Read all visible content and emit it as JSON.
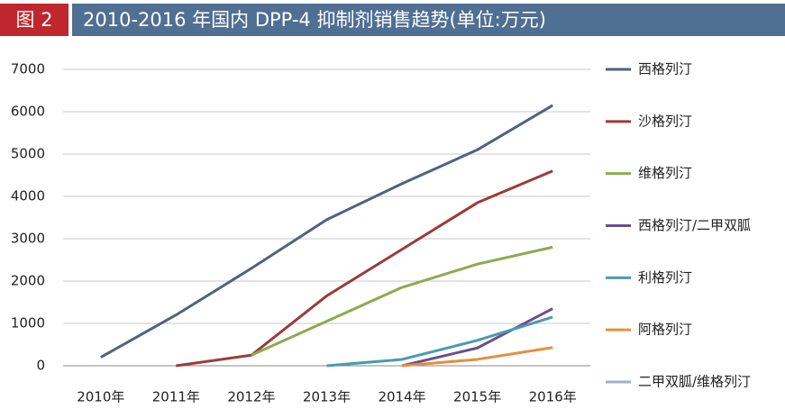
{
  "chart_data": {
    "type": "line",
    "figure_label": "图 2",
    "title": "2010-2016 年国内 DPP-4 抑制剂销售趋势(单位:万元)",
    "categories": [
      "2010年",
      "2011年",
      "2012年",
      "2013年",
      "2014年",
      "2015年",
      "2016年"
    ],
    "series": [
      {
        "name": "西格列汀",
        "color": "#4f6282",
        "values": [
          200,
          1200,
          2300,
          3450,
          4300,
          5100,
          6150
        ]
      },
      {
        "name": "沙格列汀",
        "color": "#9b3b3a",
        "values": [
          null,
          0,
          250,
          1650,
          2750,
          3850,
          4600
        ]
      },
      {
        "name": "维格列汀",
        "color": "#8aac4f",
        "values": [
          null,
          null,
          250,
          1050,
          1850,
          2400,
          2800
        ]
      },
      {
        "name": "西格列汀/二甲双胍",
        "color": "#6a4f8a",
        "values": [
          null,
          null,
          null,
          null,
          0,
          420,
          1350
        ]
      },
      {
        "name": "利格列汀",
        "color": "#4a9bb0",
        "values": [
          null,
          null,
          null,
          0,
          150,
          600,
          1150
        ]
      },
      {
        "name": "阿格列汀",
        "color": "#e39040",
        "values": [
          null,
          null,
          null,
          null,
          0,
          150,
          430
        ]
      },
      {
        "name": "二甲双胍/维格列汀",
        "color": "#9eb3c7",
        "values": [
          null,
          null,
          null,
          null,
          null,
          null,
          null
        ]
      }
    ],
    "ylim": [
      0,
      7000
    ],
    "yticks": [
      0,
      1000,
      2000,
      3000,
      4000,
      5000,
      6000,
      7000
    ],
    "grid": true,
    "legend": "right"
  }
}
